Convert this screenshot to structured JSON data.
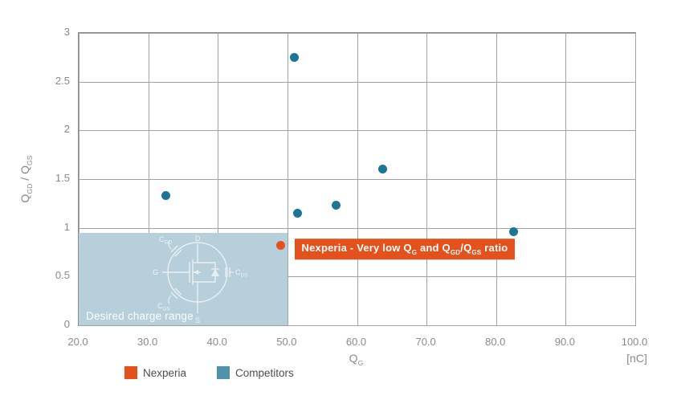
{
  "chart_data": {
    "type": "scatter",
    "title": "",
    "xlabel": "Q_{G}",
    "x_unit": "[nC]",
    "ylabel": "Q_{GD} / Q_{GS}",
    "xlim": [
      20,
      100
    ],
    "ylim": [
      0,
      3
    ],
    "grid": true,
    "xticks": {
      "values": [
        20,
        30,
        40,
        50,
        60,
        70,
        80,
        90,
        100
      ],
      "labels": [
        "20.0",
        "30.0",
        "40.0",
        "50.0",
        "60.0",
        "70.0",
        "80.0",
        "90.0",
        "100.0"
      ]
    },
    "yticks": {
      "values": [
        0,
        0.5,
        1,
        1.5,
        2,
        2.5,
        3
      ],
      "labels": [
        "0",
        "0.5",
        "1",
        "1.5",
        "2",
        "2.5",
        "3"
      ]
    },
    "series": [
      {
        "name": "Nexperia",
        "color": "#e5511c",
        "points": [
          [
            49,
            0.82
          ]
        ]
      },
      {
        "name": "Competitors",
        "color": "#1d7596",
        "legend_color": "#4e92ad",
        "points": [
          [
            32.5,
            1.33
          ],
          [
            51,
            2.75
          ],
          [
            51.5,
            1.15
          ],
          [
            57,
            1.23
          ],
          [
            63.7,
            1.6
          ],
          [
            82.5,
            0.96
          ]
        ]
      }
    ],
    "shaded_region": {
      "x": [
        20,
        50
      ],
      "y": [
        0,
        0.95
      ],
      "color": "#b7cfda",
      "label": "Desired charge range"
    },
    "annotation": {
      "text": "Nexperia - Very low Q_{G} and Q_{GD}/Q_{GS} ratio",
      "x": 51,
      "y": 0.78,
      "bg": "#e5511c",
      "text_color": "#ffffff"
    },
    "legend_position": "bottom-left"
  },
  "diagram": {
    "drain": "D",
    "gate": "G",
    "source": "S",
    "cap_gd": {
      "base": "C",
      "sub": "GD"
    },
    "cap_gs": {
      "base": "C",
      "sub": "GS"
    },
    "cap_ds": {
      "base": "C",
      "sub": "DS"
    }
  }
}
